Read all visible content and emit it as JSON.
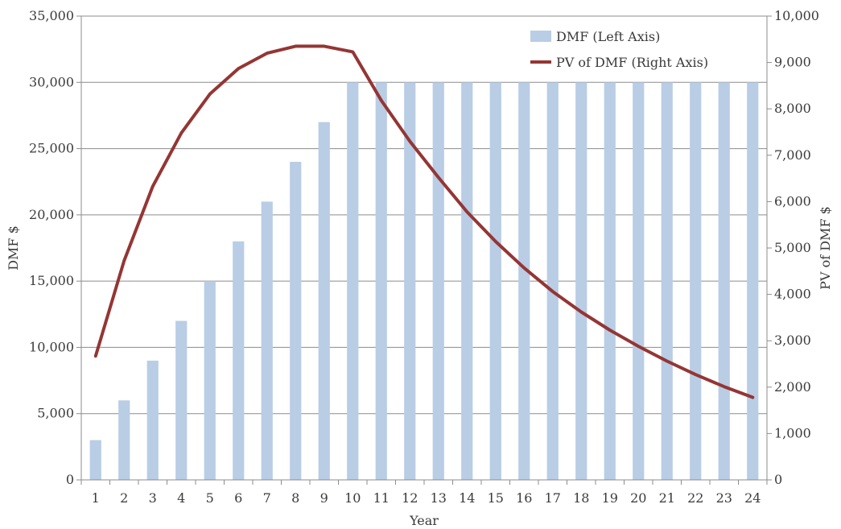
{
  "chart_data": {
    "type": "bar",
    "title": "",
    "xlabel": "Year",
    "ylabel": "DMF $",
    "y2label": "PV of DMF $",
    "categories": [
      "1",
      "2",
      "3",
      "4",
      "5",
      "6",
      "7",
      "8",
      "9",
      "10",
      "11",
      "12",
      "13",
      "14",
      "15",
      "16",
      "17",
      "18",
      "19",
      "20",
      "21",
      "22",
      "23",
      "24"
    ],
    "series": [
      {
        "name": "DMF (Left Axis)",
        "type": "bar",
        "axis": "left",
        "color": "#b9cde5",
        "values": [
          3000,
          6000,
          9000,
          12000,
          15000,
          18000,
          21000,
          24000,
          27000,
          30000,
          30000,
          30000,
          30000,
          30000,
          30000,
          30000,
          30000,
          30000,
          30000,
          30000,
          30000,
          30000,
          30000,
          30000
        ]
      },
      {
        "name": "PV of DMF (Right Axis)",
        "type": "line",
        "axis": "right",
        "color": "#943634",
        "values": [
          2670,
          4730,
          6330,
          7480,
          8320,
          8870,
          9200,
          9350,
          9350,
          9230,
          8180,
          7300,
          6520,
          5780,
          5140,
          4570,
          4060,
          3620,
          3230,
          2880,
          2560,
          2270,
          2010,
          1780
        ]
      }
    ],
    "ylim": [
      0,
      35000
    ],
    "y2lim": [
      0,
      10000
    ],
    "y_ticks": [
      "0",
      "5,000",
      "10,000",
      "15,000",
      "20,000",
      "25,000",
      "30,000",
      "35,000"
    ],
    "y2_ticks": [
      "0",
      "1,000",
      "2,000",
      "3,000",
      "4,000",
      "5,000",
      "6,000",
      "7,000",
      "8,000",
      "9,000",
      "10,000"
    ],
    "grid": true,
    "legend_position": "top-right"
  }
}
